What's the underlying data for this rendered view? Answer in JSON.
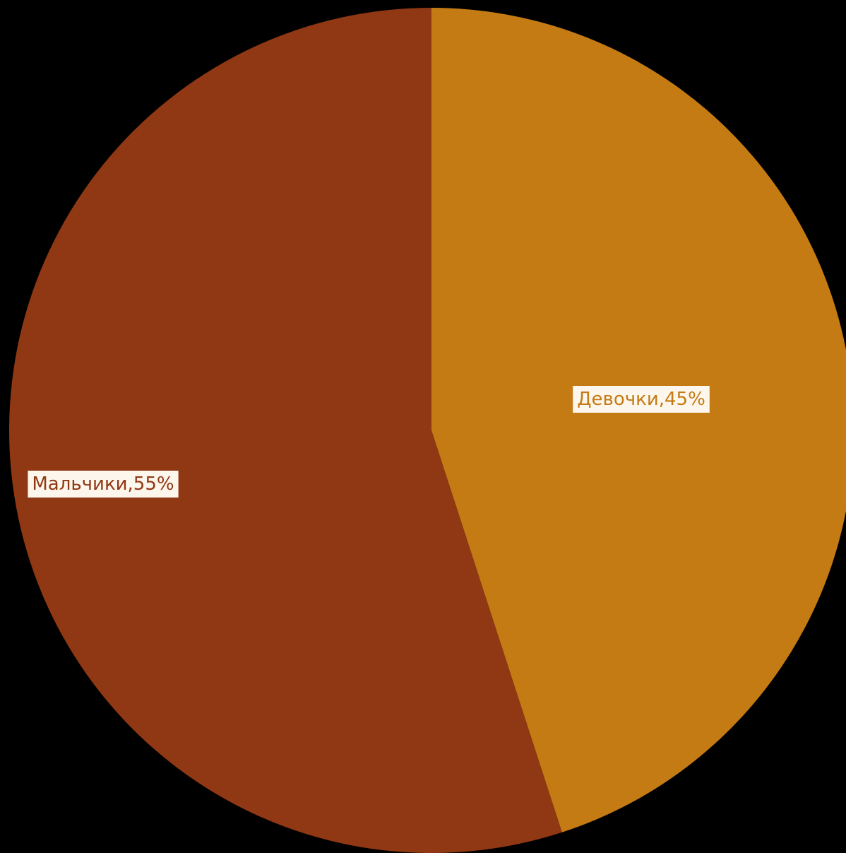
{
  "chart_data": {
    "type": "pie",
    "categories": [
      "Девочки",
      "Мальчики"
    ],
    "values": [
      45,
      55
    ],
    "data_labels": [
      "Девочки,45%",
      "Мальчики,55%"
    ],
    "colors": [
      "#c47b14",
      "#903813"
    ],
    "label_colors": [
      "#c47b14",
      "#903813"
    ],
    "start": "12 o'clock",
    "direction": "clockwise",
    "legend": "none",
    "background": "#000000"
  }
}
